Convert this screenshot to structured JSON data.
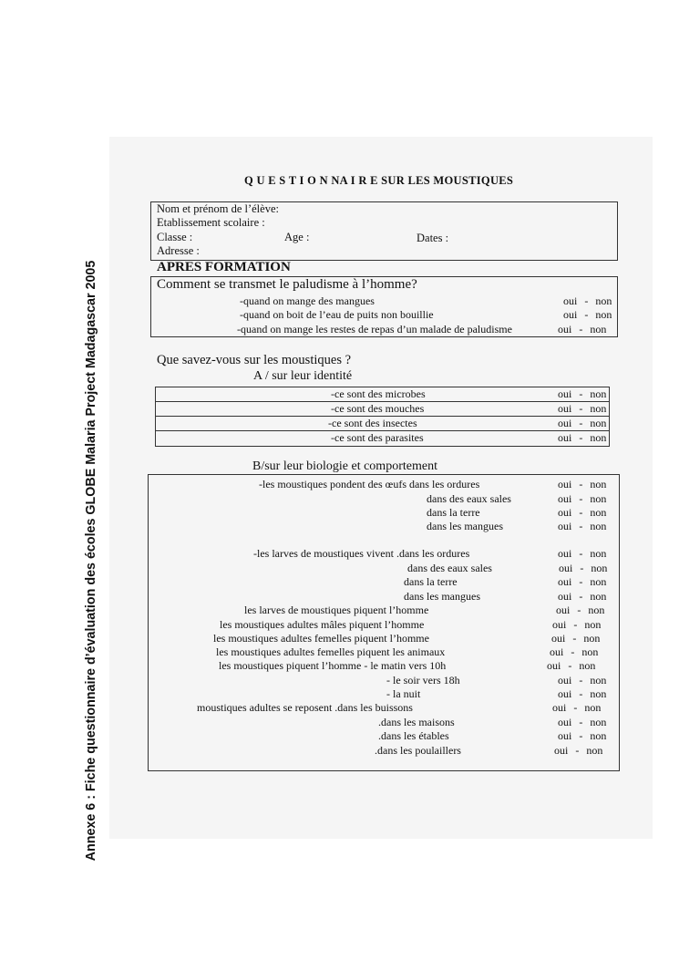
{
  "side_caption": "Annexe  6 : Fiche questionnaire d’évaluation des écoles GLOBE Malaria Project  Madagascar 2005",
  "title": "Q U E S T I O N NA I R E  SUR  LES MOUSTIQUES",
  "identity": {
    "name": "Nom et prénom de l’élève:",
    "school": "Etablissement scolaire :",
    "class": "Classe :",
    "age": "Age :",
    "dates": "Dates :",
    "address": "Adresse :"
  },
  "section_heading": "APRES FORMATION",
  "q1": {
    "question": "Comment se transmet le paludisme à l’homme?",
    "items": [
      "-quand on mange des   mangues",
      "-quand on boit de l’eau de puits non bouillie",
      "-quand on mange les restes de repas d’un malade de paludisme"
    ]
  },
  "q2": {
    "question": "Que savez-vous sur les moustiques ?",
    "partA": {
      "heading": "A / sur leur identité",
      "items": [
        "-ce sont des microbes",
        "-ce sont des mouches",
        "-ce sont des insectes",
        "-ce sont des parasites"
      ]
    },
    "partB": {
      "heading": "B/sur leur  biologie et comportement",
      "items": [
        "-les moustiques pondent des œufs dans les ordures",
        "dans  des eaux sales",
        "dans la terre",
        "dans les mangues",
        "-les larves de moustiques vivent .dans les ordures",
        "dans  des eaux sales",
        "dans la terre",
        "dans les mangues",
        "les larves de moustiques piquent l’homme",
        "les moustiques adultes mâles piquent  l’homme",
        "les moustiques adultes femelles piquent  l’homme",
        "les moustiques adultes femelles piquent  les animaux",
        "les moustiques piquent  l’homme - le matin vers 10h",
        "- le soir vers 18h",
        "- la nuit",
        "moustiques adultes  se reposent .dans les buissons",
        ".dans les maisons",
        ".dans les  étables",
        ".dans les poulaillers"
      ]
    }
  },
  "answer": {
    "yes": "oui",
    "sep": "-",
    "no": "non"
  }
}
